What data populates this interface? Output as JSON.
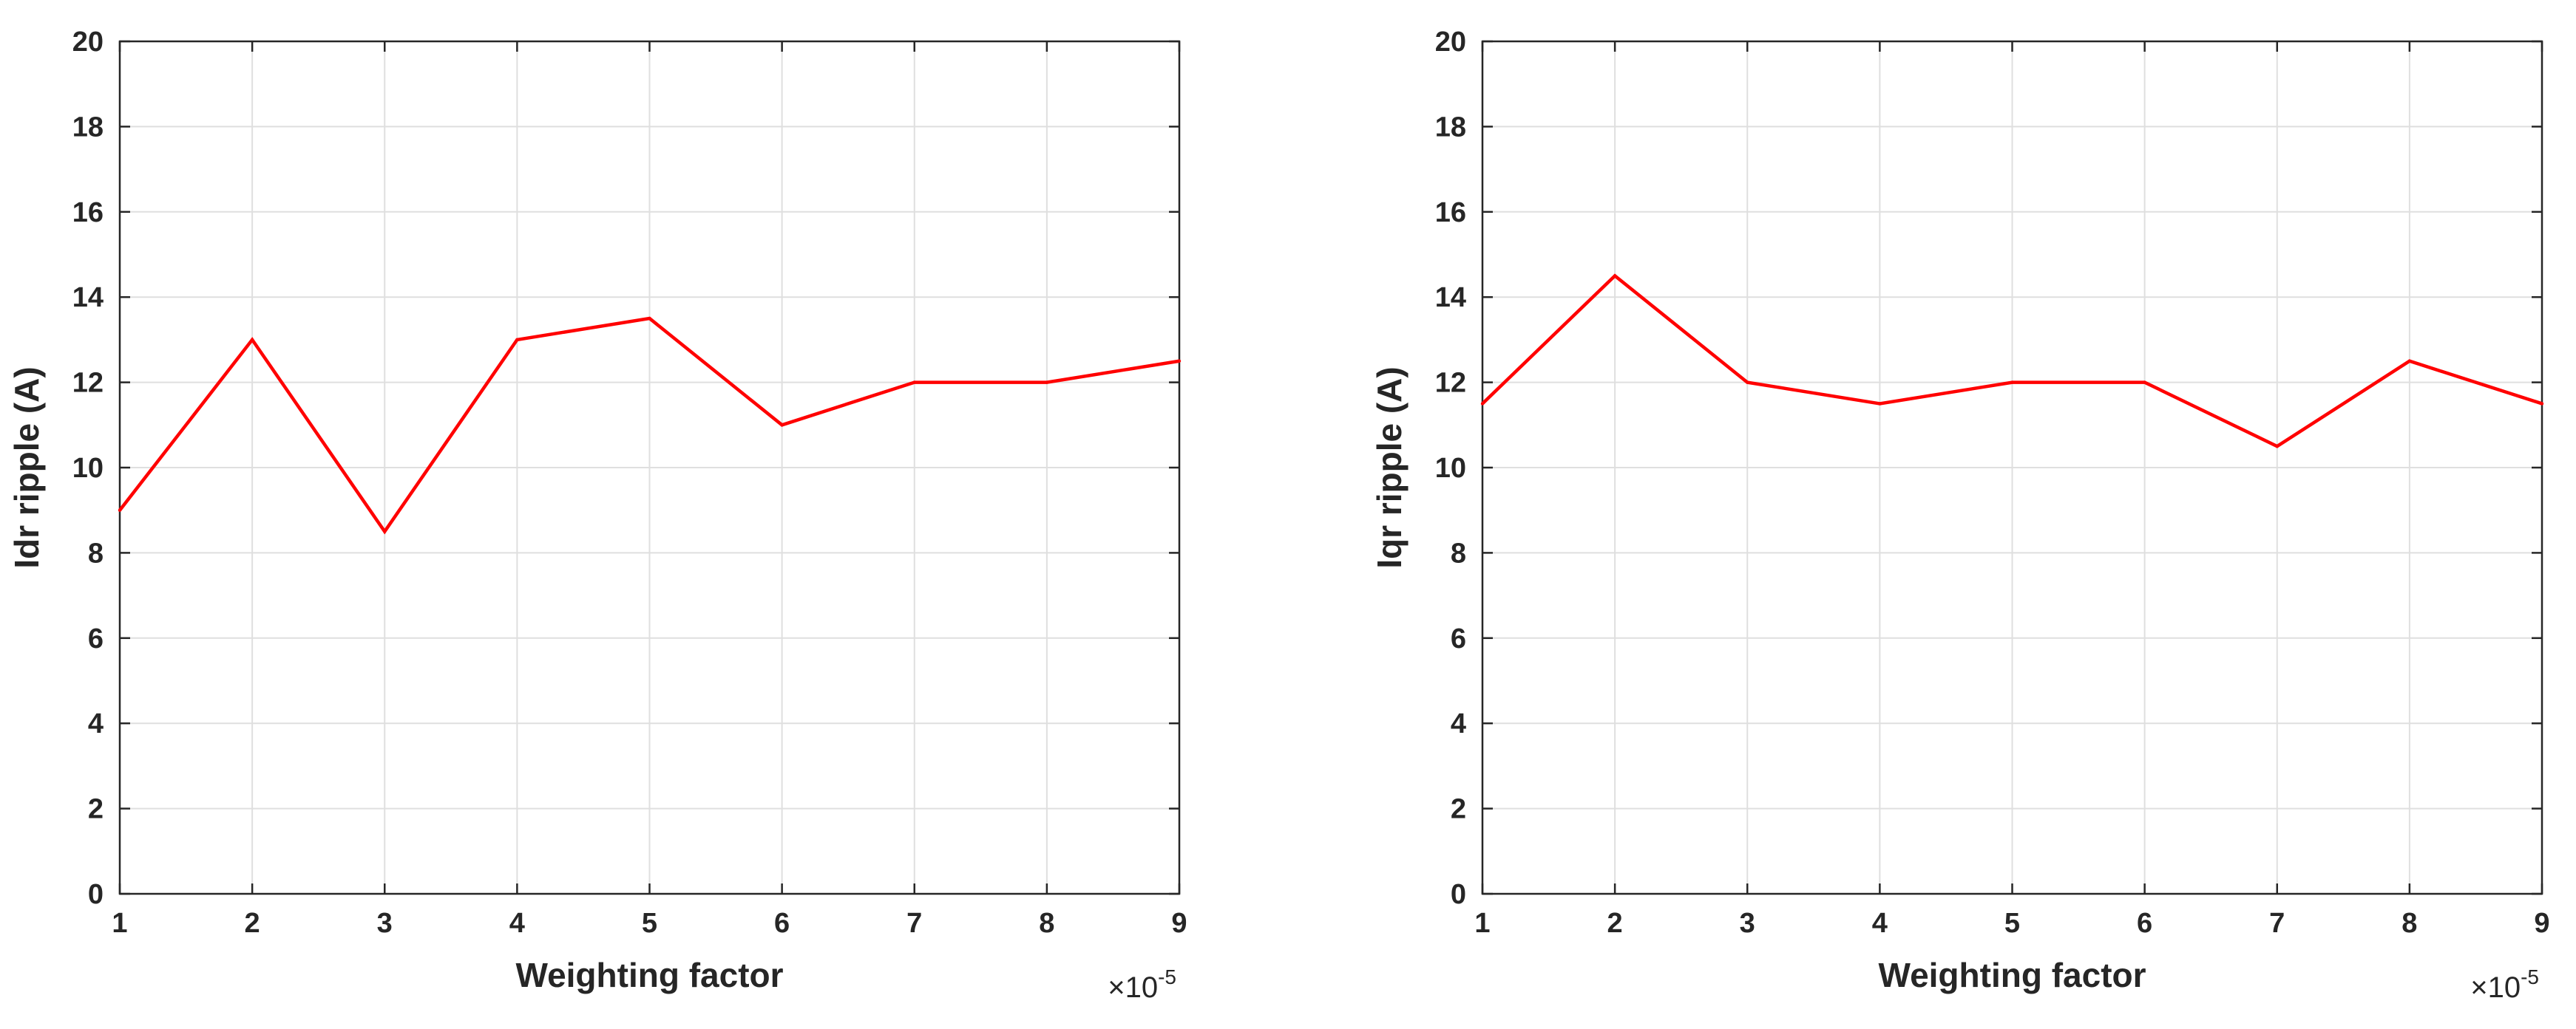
{
  "chart_data": [
    {
      "type": "line",
      "xlabel": "Weighting factor",
      "ylabel": "Idr ripple (A)",
      "x_exponent_label": "×10",
      "x_exponent": "-5",
      "x": [
        1,
        2,
        3,
        4,
        5,
        6,
        7,
        8,
        9
      ],
      "xlim": [
        1,
        9
      ],
      "ylim": [
        0,
        20
      ],
      "xticks": [
        "1",
        "2",
        "3",
        "4",
        "5",
        "6",
        "7",
        "8",
        "9"
      ],
      "yticks": [
        "0",
        "2",
        "4",
        "6",
        "8",
        "10",
        "12",
        "14",
        "16",
        "18",
        "20"
      ],
      "grid": true,
      "series": [
        {
          "values": [
            9.0,
            13.0,
            8.5,
            13.0,
            13.5,
            11.0,
            12.0,
            12.0,
            12.5
          ],
          "color": "#ff0000"
        }
      ]
    },
    {
      "type": "line",
      "xlabel": "Weighting factor",
      "ylabel": "Iqr ripple (A)",
      "x_exponent_label": "×10",
      "x_exponent": "-5",
      "x": [
        1,
        2,
        3,
        4,
        5,
        6,
        7,
        8,
        9
      ],
      "xlim": [
        1,
        9
      ],
      "ylim": [
        0,
        20
      ],
      "xticks": [
        "1",
        "2",
        "3",
        "4",
        "5",
        "6",
        "7",
        "8",
        "9"
      ],
      "yticks": [
        "0",
        "2",
        "4",
        "6",
        "8",
        "10",
        "12",
        "14",
        "16",
        "18",
        "20"
      ],
      "grid": true,
      "series": [
        {
          "values": [
            11.5,
            14.5,
            12.0,
            11.5,
            12.0,
            12.0,
            10.5,
            12.5,
            11.5
          ],
          "color": "#ff0000"
        }
      ]
    }
  ]
}
